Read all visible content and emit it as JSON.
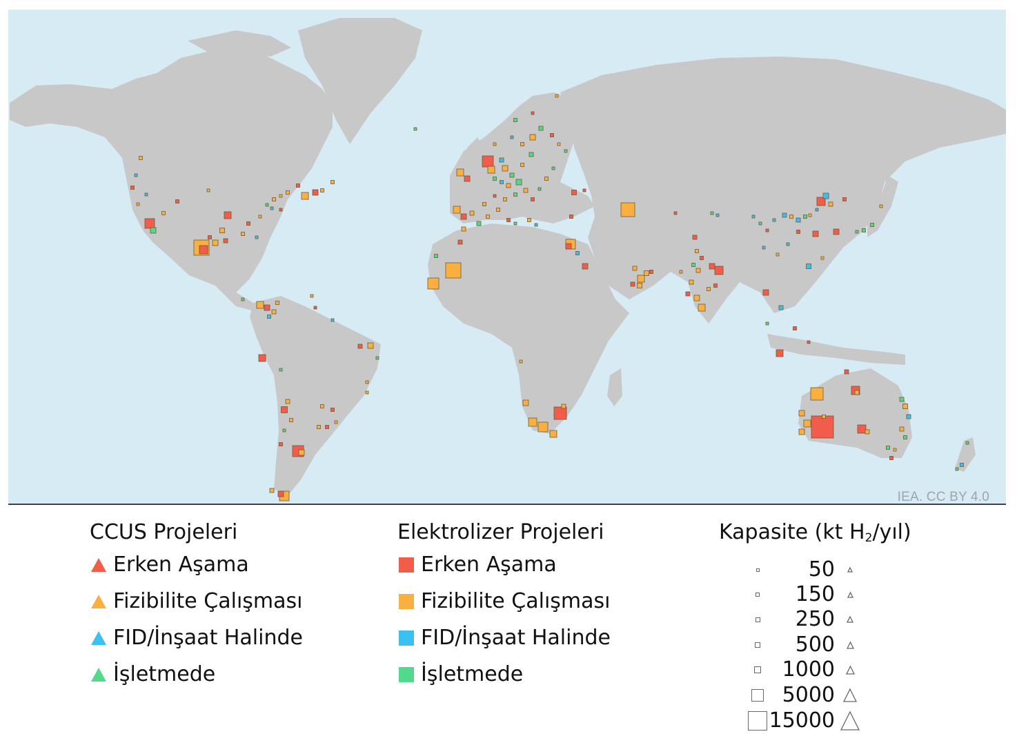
{
  "map": {
    "credit": "IEA. CC BY 4.0",
    "colors": {
      "ocean": "#d7ebf5",
      "land": "#c8c8c8"
    },
    "status_colors": {
      "early": "#f25c4a",
      "feasibility": "#f9b040",
      "fid": "#3cc0ef",
      "operational": "#52d98a"
    }
  },
  "legend": {
    "ccus": {
      "title": "CCUS Projeleri",
      "items": [
        {
          "label": "Erken Aşama",
          "status": "early",
          "icon": "triangle"
        },
        {
          "label": "Fizibilite Çalışması",
          "status": "feasibility",
          "icon": "triangle"
        },
        {
          "label": "FID/İnşaat Halinde",
          "status": "fid",
          "icon": "triangle"
        },
        {
          "label": "İşletmede",
          "status": "operational",
          "icon": "triangle"
        }
      ]
    },
    "electrolyzer": {
      "title": "Elektrolizer Projeleri",
      "items": [
        {
          "label": "Erken Aşama",
          "status": "early",
          "icon": "square"
        },
        {
          "label": "Fizibilite Çalışması",
          "status": "feasibility",
          "icon": "square"
        },
        {
          "label": "FID/İnşaat Halinde",
          "status": "fid",
          "icon": "square"
        },
        {
          "label": "İşletmede",
          "status": "operational",
          "icon": "square"
        }
      ]
    },
    "capacity": {
      "title_main": "Kapasite (kt H",
      "title_sub": "2",
      "title_end": "/yıl)",
      "values": [
        "50",
        "150",
        "250",
        "500",
        "1000",
        "5000",
        "15000"
      ]
    }
  }
}
